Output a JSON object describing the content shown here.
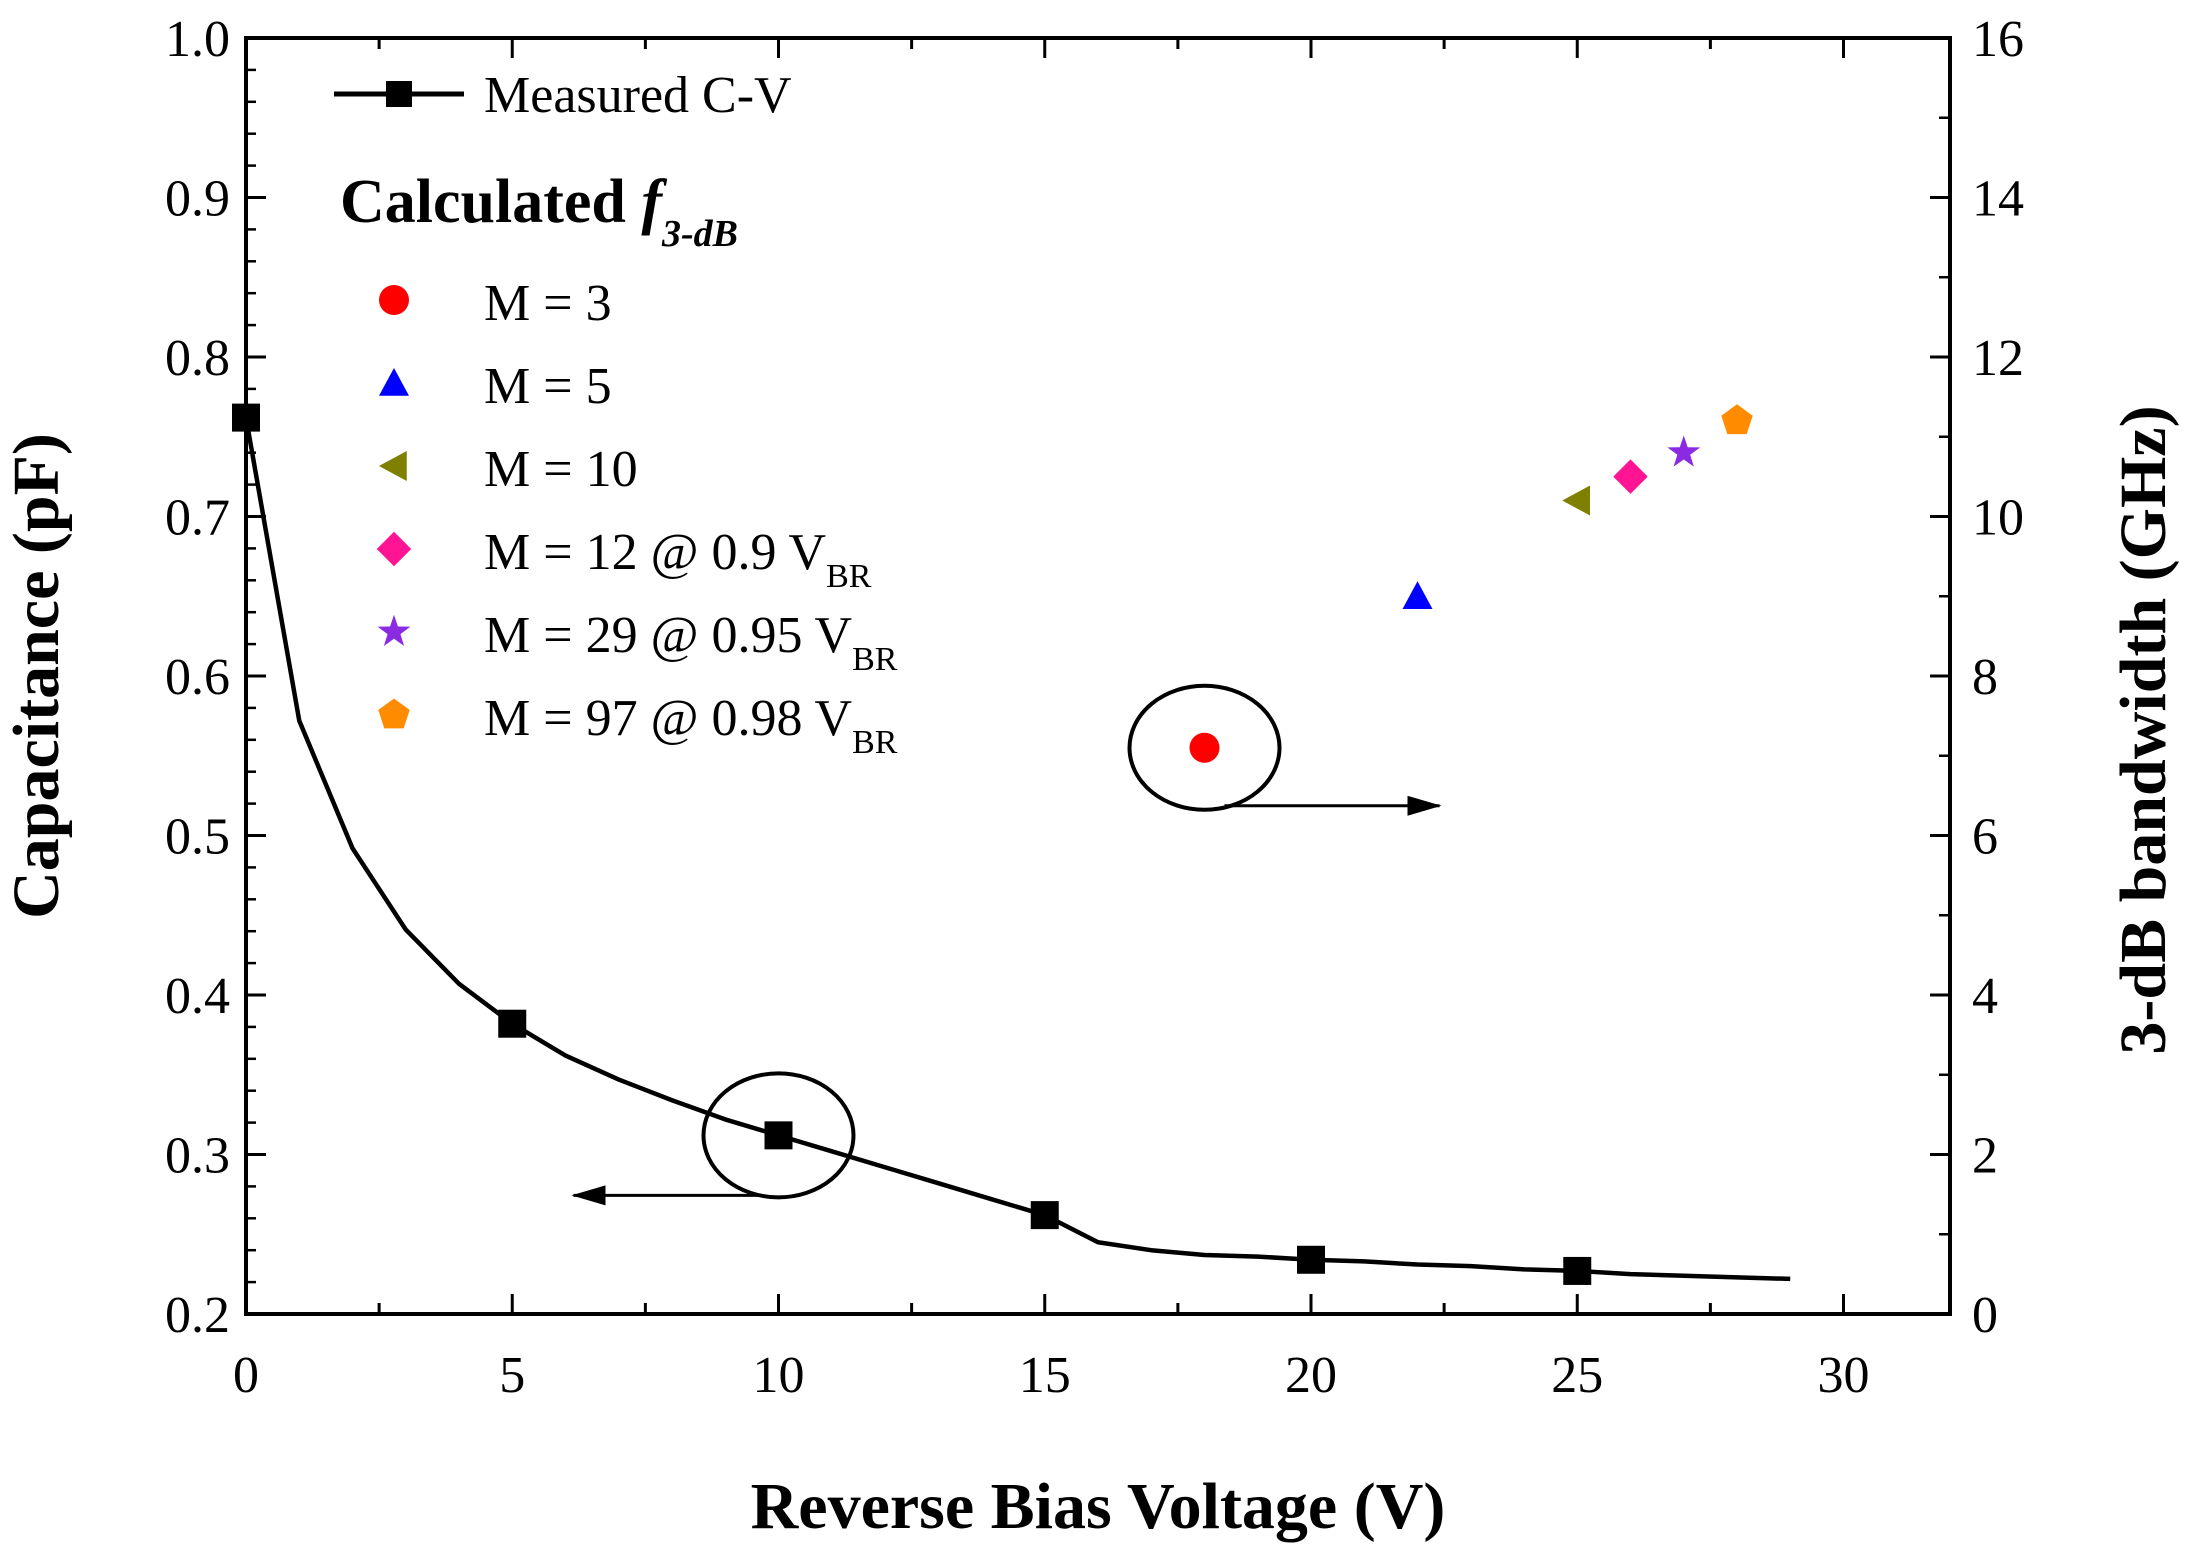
{
  "chart_data": {
    "type": "line",
    "xlabel": "Reverse Bias Voltage (V)",
    "ylabel_left": "Capacitance (pF)",
    "ylabel_right": "3-dB bandwidth (GHz)",
    "xlim": [
      0,
      32
    ],
    "ylim_left": [
      0.2,
      1.0
    ],
    "ylim_right": [
      0,
      16
    ],
    "x_ticks": [
      "0",
      "5",
      "10",
      "15",
      "20",
      "25",
      "30"
    ],
    "y_left_ticks": [
      "0.2",
      "0.3",
      "0.4",
      "0.5",
      "0.6",
      "0.7",
      "0.8",
      "0.9",
      "1.0"
    ],
    "y_right_ticks": [
      "0",
      "2",
      "4",
      "6",
      "8",
      "10",
      "12",
      "14",
      "16"
    ],
    "series": [
      {
        "name": "Measured C-V",
        "axis": "left",
        "color": "#000000",
        "marker": "square",
        "x": [
          0,
          1,
          2,
          3,
          4,
          5,
          6,
          7,
          8,
          9,
          10,
          11,
          12,
          13,
          14,
          15,
          16,
          17,
          18,
          19,
          20,
          21,
          22,
          23,
          24,
          25,
          26,
          27,
          28,
          29
        ],
        "y": [
          0.762,
          0.572,
          0.492,
          0.441,
          0.407,
          0.382,
          0.362,
          0.347,
          0.334,
          0.322,
          0.312,
          0.302,
          0.292,
          0.282,
          0.272,
          0.262,
          0.245,
          0.24,
          0.237,
          0.236,
          0.234,
          0.233,
          0.231,
          0.23,
          0.228,
          0.227,
          0.225,
          0.224,
          0.223,
          0.222
        ],
        "marker_x": [
          0,
          5,
          10,
          15,
          20,
          25
        ],
        "marker_y": [
          0.762,
          0.382,
          0.312,
          0.262,
          0.234,
          0.227
        ]
      }
    ],
    "calculated_points": [
      {
        "label": "M = 3",
        "x": 18,
        "y": 7.1,
        "marker": "circle",
        "color": "#ff0000"
      },
      {
        "label": "M = 5",
        "x": 22,
        "y": 9.0,
        "marker": "triangle-up",
        "color": "#0000ff"
      },
      {
        "label": "M = 10",
        "x": 25,
        "y": 10.2,
        "marker": "triangle-left",
        "color": "#808000"
      },
      {
        "label": "M = 12 @ 0.9 V",
        "sub": "BR",
        "x": 26,
        "y": 10.5,
        "marker": "diamond",
        "color": "#ff1493"
      },
      {
        "label": "M = 29 @ 0.95 V",
        "sub": "BR",
        "x": 27,
        "y": 10.8,
        "marker": "star",
        "color": "#8a2be2"
      },
      {
        "label": "M = 97 @ 0.98 V",
        "sub": "BR",
        "x": 28,
        "y": 11.2,
        "marker": "pentagon",
        "color": "#ff8c00"
      }
    ],
    "legend_heading": "Calculated ",
    "legend_heading_f": "f",
    "legend_heading_sub": "3-dB",
    "legend_placement": "top-left",
    "annotations": [
      {
        "type": "ellipse-arrow",
        "target": "left-axis",
        "x": 10,
        "y": 0.312
      },
      {
        "type": "ellipse-arrow",
        "target": "right-axis",
        "x": 18,
        "y": 7.1
      }
    ]
  }
}
